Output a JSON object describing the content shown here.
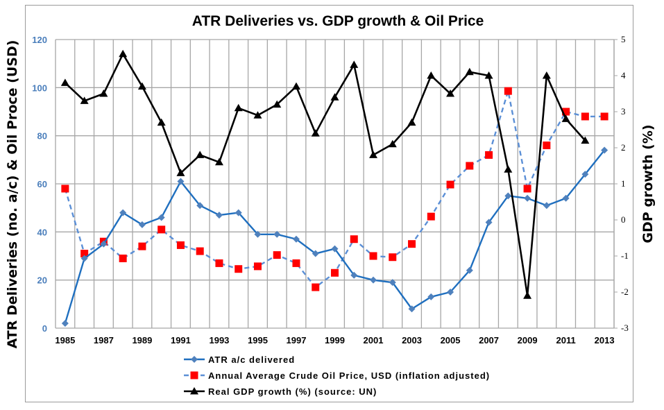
{
  "chart_data": {
    "type": "line",
    "title": "ATR Deliveries vs. GDP growth & Oil Price",
    "xlabel": "",
    "ylabel": "ATR Deliveries (no. a/c) & Oil Proce (USD)",
    "y2label": "GDP growth (%)",
    "ylim": [
      0,
      120
    ],
    "y2lim": [
      -3,
      5
    ],
    "grid": true,
    "legend_position": "bottom",
    "x": [
      1985,
      1986,
      1987,
      1988,
      1989,
      1990,
      1991,
      1992,
      1993,
      1994,
      1995,
      1996,
      1997,
      1998,
      1999,
      2000,
      2001,
      2002,
      2003,
      2004,
      2005,
      2006,
      2007,
      2008,
      2009,
      2010,
      2011,
      2012,
      2013
    ],
    "x_tick_labels": [
      "1985",
      "1987",
      "1989",
      "1991",
      "1993",
      "1995",
      "1997",
      "1999",
      "2001",
      "2003",
      "2005",
      "2007",
      "2009",
      "2011",
      "2013"
    ],
    "y_tick_labels": [
      "0",
      "20",
      "40",
      "60",
      "80",
      "100",
      "120"
    ],
    "y2_tick_labels": [
      "-3",
      "-2",
      "-1",
      "0",
      "1",
      "2",
      "3",
      "4",
      "5"
    ],
    "series": [
      {
        "name": "ATR a/c delivered",
        "axis": "left",
        "color": "#1f6fbf",
        "marker": "diamond",
        "marker_color": "#4f81bd",
        "style": "solid",
        "values": [
          2,
          29,
          35,
          48,
          43,
          46,
          61,
          51,
          47,
          48,
          39,
          39,
          37,
          31,
          33,
          22,
          20,
          19,
          8,
          13,
          15,
          24,
          44,
          55,
          54,
          51,
          54,
          64,
          74
        ]
      },
      {
        "name": "Annual Average Crude Oil Price, USD (inflation adjusted)",
        "axis": "left",
        "color": "#5b8fd6",
        "marker": "square",
        "marker_color": "#ff0000",
        "style": "dashed",
        "values": [
          58,
          31,
          36,
          29,
          34,
          41,
          34.5,
          32,
          27,
          24.6,
          25.7,
          30.4,
          27,
          17,
          23,
          37,
          30,
          29.5,
          35,
          46.4,
          59.7,
          67.5,
          72,
          98.6,
          58,
          76,
          90,
          88,
          88
        ]
      },
      {
        "name": "Real GDP growth (%) (source: UN)",
        "axis": "right",
        "color": "#000000",
        "marker": "triangle",
        "marker_color": "#000000",
        "style": "solid",
        "values": [
          3.8,
          3.3,
          3.5,
          4.6,
          3.7,
          2.7,
          1.3,
          1.8,
          1.6,
          3.1,
          2.9,
          3.2,
          3.7,
          2.4,
          3.4,
          4.3,
          1.8,
          2.1,
          2.7,
          4.0,
          3.5,
          4.1,
          4.0,
          1.4,
          -2.1,
          4.0,
          2.8,
          2.2,
          null
        ]
      }
    ]
  }
}
